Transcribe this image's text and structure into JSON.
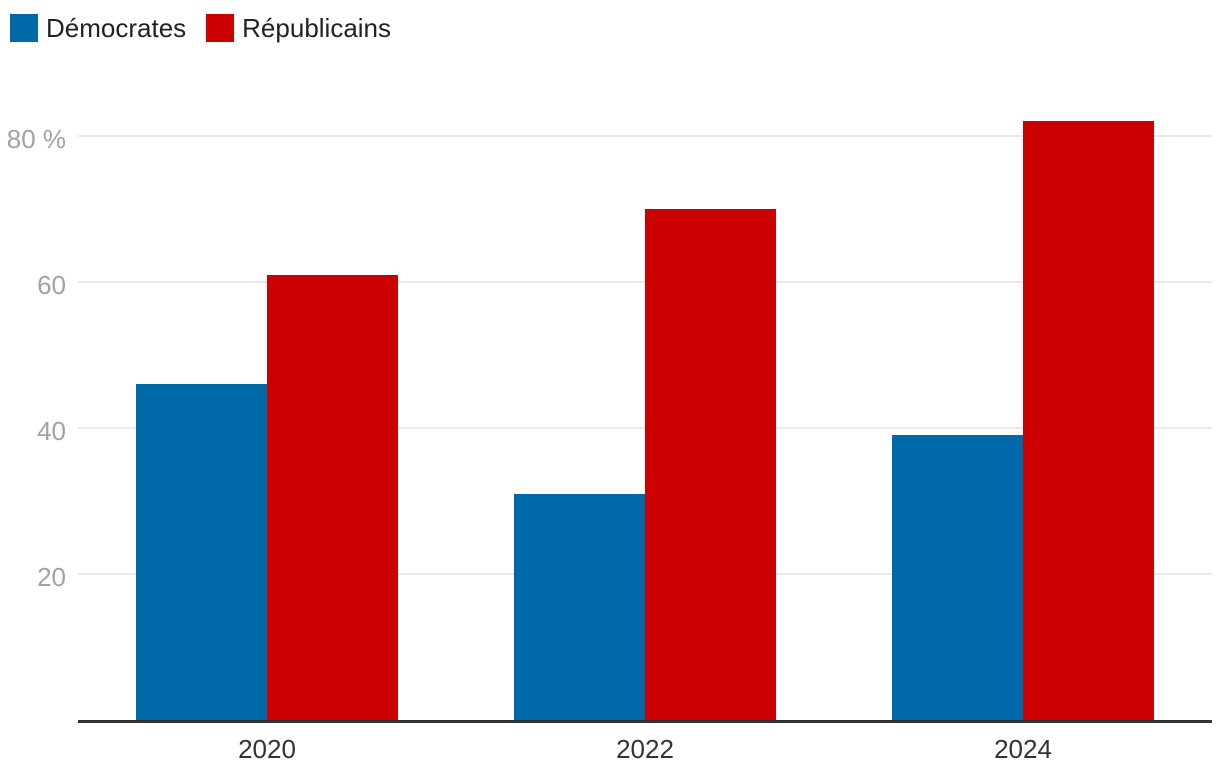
{
  "legend": {
    "items": [
      {
        "label": "Démocrates",
        "color": "#0069a8"
      },
      {
        "label": "Républicains",
        "color": "#cc0000"
      }
    ]
  },
  "chart_data": {
    "type": "bar",
    "subtype": "grouped",
    "title": "",
    "xlabel": "",
    "ylabel": "",
    "unit": "%",
    "categories": [
      "2020",
      "2022",
      "2024"
    ],
    "series": [
      {
        "name": "Démocrates",
        "color": "#0069a8",
        "values": [
          46,
          31,
          39
        ]
      },
      {
        "name": "Républicains",
        "color": "#cc0000",
        "values": [
          61,
          70,
          82
        ]
      }
    ],
    "y_ticks": [
      {
        "value": 20,
        "label": "20"
      },
      {
        "value": 40,
        "label": "40"
      },
      {
        "value": 60,
        "label": "60"
      },
      {
        "value": 80,
        "label": "80 %"
      }
    ],
    "ylim": [
      0,
      87
    ],
    "grid": true,
    "legend_position": "top-left"
  },
  "style": {
    "axis_color": "#333333",
    "gridline_color": "#e9e9e9",
    "y_tick_color": "#a2a2a2",
    "x_tick_color": "#333333",
    "background": "#ffffff"
  }
}
